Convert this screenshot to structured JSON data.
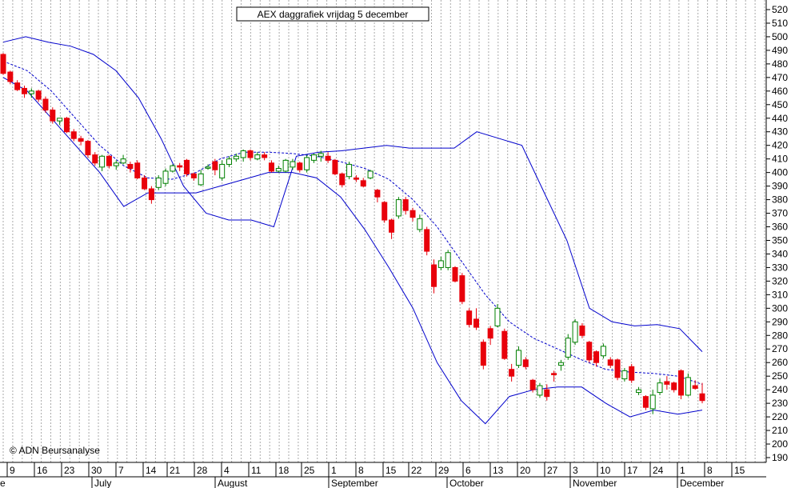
{
  "chart_data": {
    "type": "candlestick",
    "title": "AEX daggrafiek vrijdag 5 december",
    "credit": "© ADN Beursanalyse",
    "ylim": [
      185,
      525
    ],
    "y_ticks": [
      190,
      200,
      210,
      220,
      230,
      240,
      250,
      260,
      270,
      280,
      290,
      300,
      310,
      320,
      330,
      340,
      350,
      360,
      370,
      380,
      390,
      400,
      410,
      420,
      430,
      440,
      450,
      460,
      470,
      480,
      490,
      500,
      510,
      520
    ],
    "grid": "vertical dotted",
    "x_day_labels": [
      "9",
      "16",
      "23",
      "30",
      "7",
      "14",
      "21",
      "28",
      "4",
      "11",
      "18",
      "25",
      "1",
      "8",
      "15",
      "22",
      "29",
      "6",
      "13",
      "20",
      "27",
      "3",
      "10",
      "17",
      "24",
      "1",
      "8",
      "15"
    ],
    "x_month_labels": [
      "e",
      "July",
      "August",
      "September",
      "October",
      "November",
      "December"
    ],
    "colors": {
      "up": "#008000",
      "down": "#e8000b",
      "band": "#0000cc",
      "grid": "#aaaaaa",
      "axis": "#000000"
    },
    "bollinger_upper": [
      496,
      500,
      496,
      493,
      487,
      475,
      455,
      425,
      390,
      370,
      365,
      365,
      360,
      412,
      415,
      416,
      418,
      420,
      418,
      418,
      418,
      430,
      425,
      420,
      385,
      350,
      300,
      290,
      287,
      288,
      285,
      268
    ],
    "bollinger_middle": [
      482,
      475,
      460,
      440,
      420,
      405,
      396,
      395,
      400,
      410,
      415,
      415,
      414,
      412,
      408,
      403,
      395,
      380,
      360,
      335,
      310,
      290,
      278,
      270,
      262,
      255,
      253,
      252,
      250,
      244
    ],
    "bollinger_lower": [
      470,
      460,
      440,
      420,
      400,
      375,
      385,
      385,
      385,
      390,
      395,
      400,
      400,
      396,
      382,
      358,
      330,
      300,
      260,
      232,
      215,
      235,
      240,
      242,
      242,
      230,
      220,
      225,
      222,
      225
    ],
    "candles": [
      {
        "o": 487,
        "h": 488,
        "l": 472,
        "c": 473
      },
      {
        "o": 474,
        "h": 475,
        "l": 465,
        "c": 467
      },
      {
        "o": 466,
        "h": 468,
        "l": 460,
        "c": 461
      },
      {
        "o": 462,
        "h": 464,
        "l": 455,
        "c": 458
      },
      {
        "o": 458,
        "h": 462,
        "l": 455,
        "c": 460
      },
      {
        "o": 460,
        "h": 461,
        "l": 452,
        "c": 454
      },
      {
        "o": 454,
        "h": 456,
        "l": 444,
        "c": 446
      },
      {
        "o": 446,
        "h": 448,
        "l": 436,
        "c": 438
      },
      {
        "o": 438,
        "h": 440,
        "l": 435,
        "c": 440
      },
      {
        "o": 440,
        "h": 441,
        "l": 429,
        "c": 430
      },
      {
        "o": 430,
        "h": 432,
        "l": 423,
        "c": 425
      },
      {
        "o": 425,
        "h": 427,
        "l": 420,
        "c": 423
      },
      {
        "o": 423,
        "h": 424,
        "l": 411,
        "c": 413
      },
      {
        "o": 413,
        "h": 415,
        "l": 405,
        "c": 407
      },
      {
        "o": 404,
        "h": 413,
        "l": 401,
        "c": 412
      },
      {
        "o": 412,
        "h": 413,
        "l": 403,
        "c": 405
      },
      {
        "o": 405,
        "h": 409,
        "l": 402,
        "c": 407
      },
      {
        "o": 407,
        "h": 413,
        "l": 406,
        "c": 410
      },
      {
        "o": 406,
        "h": 408,
        "l": 400,
        "c": 403
      },
      {
        "o": 407,
        "h": 409,
        "l": 395,
        "c": 396
      },
      {
        "o": 396,
        "h": 398,
        "l": 387,
        "c": 388
      },
      {
        "o": 388,
        "h": 390,
        "l": 377,
        "c": 380
      },
      {
        "o": 389,
        "h": 398,
        "l": 387,
        "c": 396
      },
      {
        "o": 392,
        "h": 403,
        "l": 390,
        "c": 401
      },
      {
        "o": 401,
        "h": 406,
        "l": 400,
        "c": 405
      },
      {
        "o": 405,
        "h": 407,
        "l": 401,
        "c": 404
      },
      {
        "o": 409,
        "h": 410,
        "l": 397,
        "c": 399
      },
      {
        "o": 399,
        "h": 400,
        "l": 394,
        "c": 396
      },
      {
        "o": 391,
        "h": 402,
        "l": 390,
        "c": 399
      },
      {
        "o": 404,
        "h": 406,
        "l": 402,
        "c": 404
      },
      {
        "o": 408,
        "h": 410,
        "l": 398,
        "c": 402
      },
      {
        "o": 396,
        "h": 409,
        "l": 394,
        "c": 406
      },
      {
        "o": 406,
        "h": 412,
        "l": 404,
        "c": 410
      },
      {
        "o": 410,
        "h": 414,
        "l": 408,
        "c": 412
      },
      {
        "o": 411,
        "h": 417,
        "l": 408,
        "c": 416
      },
      {
        "o": 416,
        "h": 417,
        "l": 409,
        "c": 411
      },
      {
        "o": 410,
        "h": 415,
        "l": 409,
        "c": 413
      },
      {
        "o": 413,
        "h": 415,
        "l": 409,
        "c": 411
      },
      {
        "o": 407,
        "h": 409,
        "l": 400,
        "c": 401
      },
      {
        "o": 401,
        "h": 405,
        "l": 400,
        "c": 403
      },
      {
        "o": 401,
        "h": 410,
        "l": 400,
        "c": 409
      },
      {
        "o": 404,
        "h": 410,
        "l": 402,
        "c": 408
      },
      {
        "o": 407,
        "h": 408,
        "l": 400,
        "c": 402
      },
      {
        "o": 402,
        "h": 413,
        "l": 400,
        "c": 411
      },
      {
        "o": 409,
        "h": 414,
        "l": 407,
        "c": 413
      },
      {
        "o": 412,
        "h": 416,
        "l": 408,
        "c": 414
      },
      {
        "o": 412,
        "h": 415,
        "l": 407,
        "c": 409
      },
      {
        "o": 409,
        "h": 410,
        "l": 398,
        "c": 399
      },
      {
        "o": 399,
        "h": 400,
        "l": 389,
        "c": 391
      },
      {
        "o": 397,
        "h": 408,
        "l": 395,
        "c": 406
      },
      {
        "o": 396,
        "h": 398,
        "l": 393,
        "c": 395
      },
      {
        "o": 394,
        "h": 396,
        "l": 389,
        "c": 390
      },
      {
        "o": 396,
        "h": 402,
        "l": 395,
        "c": 401
      },
      {
        "o": 387,
        "h": 388,
        "l": 378,
        "c": 382
      },
      {
        "o": 378,
        "h": 379,
        "l": 363,
        "c": 365
      },
      {
        "o": 365,
        "h": 366,
        "l": 351,
        "c": 356
      },
      {
        "o": 368,
        "h": 382,
        "l": 366,
        "c": 380
      },
      {
        "o": 380,
        "h": 382,
        "l": 369,
        "c": 372
      },
      {
        "o": 372,
        "h": 374,
        "l": 364,
        "c": 367
      },
      {
        "o": 358,
        "h": 369,
        "l": 356,
        "c": 366
      },
      {
        "o": 358,
        "h": 360,
        "l": 339,
        "c": 342
      },
      {
        "o": 332,
        "h": 336,
        "l": 311,
        "c": 316
      },
      {
        "o": 330,
        "h": 338,
        "l": 328,
        "c": 335
      },
      {
        "o": 330,
        "h": 343,
        "l": 328,
        "c": 341
      },
      {
        "o": 330,
        "h": 331,
        "l": 319,
        "c": 320
      },
      {
        "o": 324,
        "h": 326,
        "l": 303,
        "c": 305
      },
      {
        "o": 298,
        "h": 300,
        "l": 286,
        "c": 288
      },
      {
        "o": 292,
        "h": 300,
        "l": 284,
        "c": 286
      },
      {
        "o": 275,
        "h": 277,
        "l": 255,
        "c": 258
      },
      {
        "o": 285,
        "h": 287,
        "l": 273,
        "c": 278
      },
      {
        "o": 287,
        "h": 303,
        "l": 286,
        "c": 300
      },
      {
        "o": 283,
        "h": 285,
        "l": 262,
        "c": 263
      },
      {
        "o": 255,
        "h": 259,
        "l": 246,
        "c": 250
      },
      {
        "o": 258,
        "h": 272,
        "l": 256,
        "c": 269
      },
      {
        "o": 262,
        "h": 264,
        "l": 255,
        "c": 257
      },
      {
        "o": 247,
        "h": 248,
        "l": 238,
        "c": 240
      },
      {
        "o": 236,
        "h": 245,
        "l": 234,
        "c": 243
      },
      {
        "o": 240,
        "h": 244,
        "l": 232,
        "c": 235
      },
      {
        "o": 252,
        "h": 254,
        "l": 246,
        "c": 251
      },
      {
        "o": 258,
        "h": 262,
        "l": 254,
        "c": 260
      },
      {
        "o": 264,
        "h": 281,
        "l": 262,
        "c": 278
      },
      {
        "o": 275,
        "h": 292,
        "l": 273,
        "c": 290
      },
      {
        "o": 287,
        "h": 289,
        "l": 278,
        "c": 280
      },
      {
        "o": 275,
        "h": 276,
        "l": 260,
        "c": 262
      },
      {
        "o": 268,
        "h": 269,
        "l": 257,
        "c": 260
      },
      {
        "o": 265,
        "h": 274,
        "l": 263,
        "c": 272
      },
      {
        "o": 262,
        "h": 264,
        "l": 256,
        "c": 258
      },
      {
        "o": 262,
        "h": 263,
        "l": 247,
        "c": 249
      },
      {
        "o": 248,
        "h": 256,
        "l": 246,
        "c": 254
      },
      {
        "o": 257,
        "h": 259,
        "l": 245,
        "c": 247
      },
      {
        "o": 238,
        "h": 242,
        "l": 236,
        "c": 240
      },
      {
        "o": 235,
        "h": 236,
        "l": 225,
        "c": 227
      },
      {
        "o": 226,
        "h": 240,
        "l": 222,
        "c": 236
      },
      {
        "o": 238,
        "h": 248,
        "l": 236,
        "c": 245
      },
      {
        "o": 246,
        "h": 250,
        "l": 240,
        "c": 244
      },
      {
        "o": 245,
        "h": 246,
        "l": 238,
        "c": 240
      },
      {
        "o": 254,
        "h": 255,
        "l": 233,
        "c": 236
      },
      {
        "o": 236,
        "h": 252,
        "l": 235,
        "c": 249
      },
      {
        "o": 243,
        "h": 247,
        "l": 240,
        "c": 241
      },
      {
        "o": 237,
        "h": 245,
        "l": 230,
        "c": 232
      }
    ]
  }
}
